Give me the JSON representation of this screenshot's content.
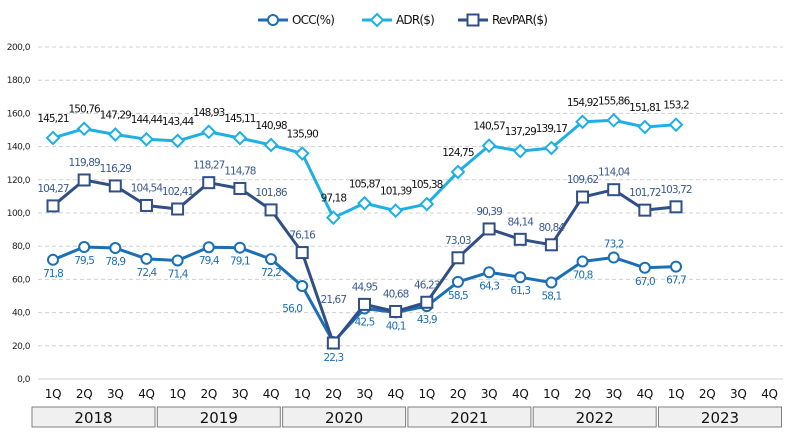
{
  "chart_data": {
    "type": "line",
    "title": "",
    "xlabel": "",
    "ylabel": "",
    "ylim": [
      0,
      200
    ],
    "yticks": [
      "0,0",
      "20,0",
      "40,0",
      "60,0",
      "80,0",
      "100,0",
      "120,0",
      "140,0",
      "160,0",
      "180,0",
      "200,0"
    ],
    "ytick_values": [
      0,
      20,
      40,
      60,
      80,
      100,
      120,
      140,
      160,
      180,
      200
    ],
    "grid": true,
    "legend_position": "top-center",
    "categories": [
      "1Q",
      "2Q",
      "3Q",
      "4Q",
      "1Q",
      "2Q",
      "3Q",
      "4Q",
      "1Q",
      "2Q",
      "3Q",
      "4Q",
      "1Q",
      "2Q",
      "3Q",
      "4Q",
      "1Q",
      "2Q",
      "3Q",
      "4Q",
      "1Q",
      "2Q",
      "3Q",
      "4Q"
    ],
    "groups": [
      {
        "label": "2018",
        "span": 4
      },
      {
        "label": "2019",
        "span": 4
      },
      {
        "label": "2020",
        "span": 4
      },
      {
        "label": "2021",
        "span": 4
      },
      {
        "label": "2022",
        "span": 4
      },
      {
        "label": "2023",
        "span": 4
      }
    ],
    "series": [
      {
        "name": "OCC(%)",
        "key": "occ",
        "color": "#1a6fb5",
        "marker": "circle",
        "values": [
          71.8,
          79.5,
          78.9,
          72.4,
          71.4,
          79.4,
          79.1,
          72.2,
          56.0,
          22.3,
          42.5,
          40.1,
          43.9,
          58.5,
          64.3,
          61.3,
          58.1,
          70.8,
          73.2,
          67.0,
          67.7,
          null,
          null,
          null
        ],
        "labels": [
          "71,8",
          "79,5",
          "78,9",
          "72,4",
          "71,4",
          "79,4",
          "79,1",
          "72,2",
          "56,0",
          "22,3",
          "42,5",
          "40,1",
          "43,9",
          "58,5",
          "64,3",
          "61,3",
          "58,1",
          "70,8",
          "73,2",
          "67,0",
          "67,7",
          null,
          null,
          null
        ]
      },
      {
        "name": "ADR($)",
        "key": "adr",
        "color": "#1eb0e4",
        "marker": "diamond",
        "values": [
          145.21,
          150.76,
          147.29,
          144.44,
          143.44,
          148.93,
          145.11,
          140.98,
          135.9,
          97.18,
          105.87,
          101.39,
          105.38,
          124.75,
          140.57,
          137.29,
          139.17,
          154.92,
          155.86,
          151.81,
          153.2,
          null,
          null,
          null
        ],
        "labels": [
          "145,21",
          "150,76",
          "147,29",
          "144,44",
          "143,44",
          "148,93",
          "145,11",
          "140,98",
          "135,90",
          "97,18",
          "105,87",
          "101,39",
          "105,38",
          "124,75",
          "140,57",
          "137,29",
          "139,17",
          "154,92",
          "155,86",
          "151,81",
          "153,2",
          null,
          null,
          null
        ]
      },
      {
        "name": "RevPAR($)",
        "key": "rev",
        "color": "#2f4f86",
        "marker": "square",
        "values": [
          104.27,
          119.89,
          116.29,
          104.54,
          102.41,
          118.27,
          114.78,
          101.86,
          76.16,
          21.67,
          44.95,
          40.68,
          46.23,
          73.03,
          90.39,
          84.14,
          80.84,
          109.62,
          114.04,
          101.72,
          103.72,
          null,
          null,
          null
        ],
        "labels": [
          "104,27",
          "119,89",
          "116,29",
          "104,54",
          "102,41",
          "118,27",
          "114,78",
          "101,86",
          "76,16",
          "21,67",
          "44,95",
          "40,68",
          "46,23",
          "73,03",
          "90,39",
          "84,14",
          "80,84",
          "109,62",
          "114,04",
          "101,72",
          "103,72",
          null,
          null,
          null
        ]
      }
    ]
  },
  "legend": [
    {
      "label": "OCC(%)",
      "icon": "circle-marker-icon"
    },
    {
      "label": "ADR($)",
      "icon": "diamond-marker-icon"
    },
    {
      "label": "RevPAR($)",
      "icon": "square-marker-icon"
    }
  ]
}
